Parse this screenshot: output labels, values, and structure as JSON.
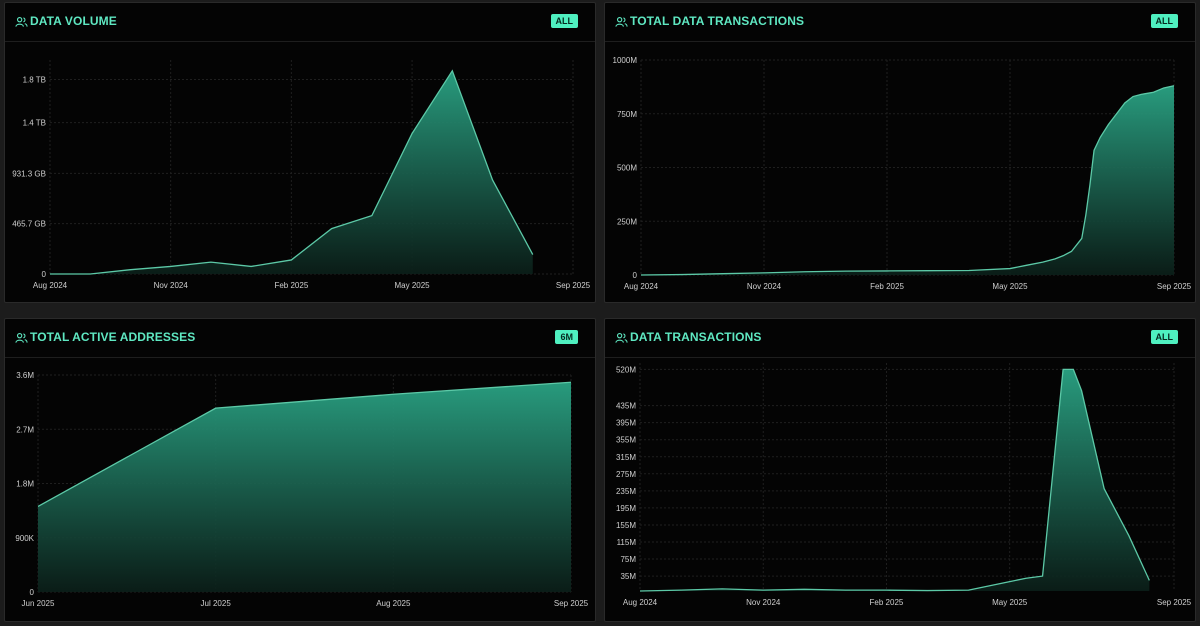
{
  "panels": [
    {
      "title": "DATA VOLUME",
      "badge": "ALL",
      "icon": "users-icon",
      "chart_data": {
        "type": "area",
        "title": "DATA VOLUME",
        "x": [
          0,
          1,
          2,
          3,
          4,
          5,
          6,
          7,
          8,
          9,
          10,
          11,
          12,
          13
        ],
        "values": [
          0,
          0,
          40,
          70,
          110,
          70,
          130,
          420,
          540,
          1300,
          1880,
          870,
          180,
          null
        ],
        "ylim": [
          0,
          1980
        ],
        "yticks": [
          0,
          465.7,
          931.3,
          1400,
          1800
        ],
        "ytick_labels": [
          "0",
          "465.7 GB",
          "931.3 GB",
          "1.4 TB",
          "1.8 TB"
        ],
        "xlim": [
          0,
          13
        ],
        "xticks": [
          0,
          3,
          6,
          9,
          13
        ],
        "xtick_labels": [
          "Aug 2024",
          "Nov 2024",
          "Feb 2025",
          "May 2025",
          "Sep 2025"
        ],
        "stroke": "#5cc9a7",
        "fill": "#2aa384"
      }
    },
    {
      "title": "TOTAL DATA TRANSACTIONS",
      "badge": "ALL",
      "icon": "users-icon",
      "chart_data": {
        "type": "area",
        "title": "TOTAL DATA TRANSACTIONS",
        "x": [
          0,
          1,
          2,
          3,
          4,
          5,
          6,
          7,
          8,
          9,
          9.4,
          9.8,
          10.1,
          10.3,
          10.5,
          10.75,
          10.85,
          10.95,
          11.05,
          11.2,
          11.4,
          11.6,
          11.8,
          12.0,
          12.2,
          12.5,
          12.75,
          13
        ],
        "values": [
          0,
          2,
          6,
          10,
          15,
          18,
          19,
          20,
          21,
          30,
          45,
          60,
          75,
          90,
          110,
          170,
          280,
          420,
          580,
          640,
          700,
          750,
          800,
          830,
          840,
          850,
          870,
          880
        ],
        "ylim": [
          0,
          1000
        ],
        "yticks": [
          0,
          250,
          500,
          750,
          1000
        ],
        "ytick_labels": [
          "0",
          "250M",
          "500M",
          "750M",
          "1000M"
        ],
        "xlim": [
          0,
          13
        ],
        "xticks": [
          0,
          3,
          6,
          9,
          13
        ],
        "xtick_labels": [
          "Aug 2024",
          "Nov 2024",
          "Feb 2025",
          "May 2025",
          "Sep 2025"
        ],
        "stroke": "#5cc9a7",
        "fill": "#2aa384"
      }
    },
    {
      "title": "TOTAL ACTIVE ADDRESSES",
      "badge": "6M",
      "icon": "users-icon",
      "chart_data": {
        "type": "area",
        "title": "TOTAL ACTIVE ADDRESSES",
        "x": [
          0,
          1,
          2,
          3
        ],
        "values": [
          1.42,
          3.05,
          3.28,
          3.48
        ],
        "ylim": [
          0,
          3.6
        ],
        "yticks": [
          0,
          0.9,
          1.8,
          2.7,
          3.6
        ],
        "ytick_labels": [
          "0",
          "900K",
          "1.8M",
          "2.7M",
          "3.6M"
        ],
        "xlim": [
          0,
          3
        ],
        "xticks": [
          0,
          1,
          2,
          3
        ],
        "xtick_labels": [
          "Jun 2025",
          "Jul 2025",
          "Aug 2025",
          "Sep 2025"
        ],
        "stroke": "#5cc9a7",
        "fill": "#2aa384"
      }
    },
    {
      "title": "DATA TRANSACTIONS",
      "badge": "ALL",
      "icon": "users-icon",
      "chart_data": {
        "type": "area",
        "title": "DATA TRANSACTIONS",
        "x": [
          0,
          1,
          2,
          3,
          4,
          5,
          6,
          7,
          8,
          9,
          9.4,
          9.8,
          10.3,
          10.55,
          10.75,
          11.3,
          11.9,
          12.4,
          13
        ],
        "values": [
          0,
          2,
          5,
          2,
          4,
          2,
          2,
          1,
          2,
          22,
          30,
          35,
          520,
          520,
          470,
          240,
          130,
          25,
          null
        ],
        "ylim": [
          0,
          535
        ],
        "yticks": [
          35,
          75,
          115,
          155,
          195,
          235,
          275,
          315,
          355,
          395,
          435,
          520
        ],
        "ytick_labels": [
          "35M",
          "75M",
          "115M",
          "155M",
          "195M",
          "235M",
          "275M",
          "315M",
          "355M",
          "395M",
          "435M",
          "520M"
        ],
        "xlim": [
          0,
          13
        ],
        "xticks": [
          0,
          3,
          6,
          9,
          13
        ],
        "xtick_labels": [
          "Aug 2024",
          "Nov 2024",
          "Feb 2025",
          "May 2025",
          "Sep 2025"
        ],
        "stroke": "#5cc9a7",
        "fill": "#2aa384"
      }
    }
  ]
}
